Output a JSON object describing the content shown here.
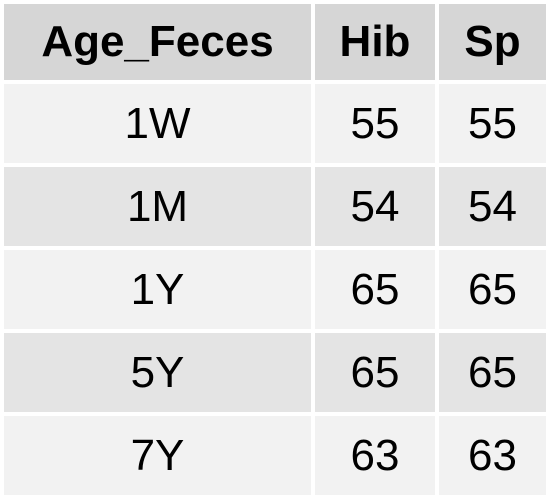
{
  "chart_data": {
    "type": "table",
    "columns": [
      "Age_Feces",
      "Hib",
      "Sp"
    ],
    "rows": [
      [
        "1W",
        "55",
        "55"
      ],
      [
        "1M",
        "54",
        "54"
      ],
      [
        "1Y",
        "65",
        "65"
      ],
      [
        "5Y",
        "65",
        "65"
      ],
      [
        "7Y",
        "63",
        "63"
      ]
    ]
  },
  "colors": {
    "header_bg": "#d6d6d6",
    "row_odd_bg": "#f2f2f2",
    "row_even_bg": "#e4e4e4",
    "text": "#000000"
  }
}
